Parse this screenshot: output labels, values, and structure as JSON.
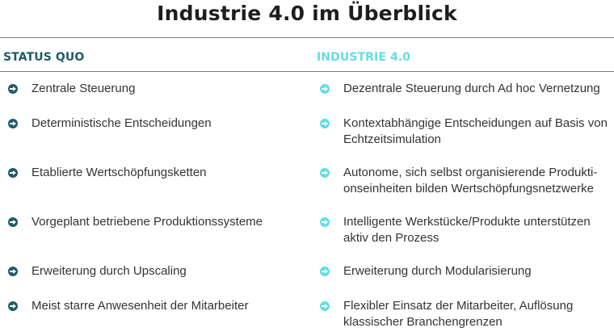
{
  "title": "Industrie 4.0 im Überblick",
  "columns": {
    "left": {
      "heading": "STATUS QUO",
      "items": [
        "Zentrale Steuerung",
        "Deterministische Entscheidungen",
        "Etablierte Wertschöpfungsketten",
        "Vorgeplant betriebene Produktionssysteme",
        "Erweiterung durch Upscaling",
        "Meist starre Anwesenheit der Mitarbeiter"
      ]
    },
    "right": {
      "heading": "INDUSTRIE 4.0",
      "items": [
        "Dezentrale Steuerung durch Ad hoc Vernetzung",
        "Kontextabhängige Entscheidungen auf Basis von Echtzeitsimulation",
        "Autonome, sich selbst organisierende Produkti-onseinheiten bilden Wertschöpfungsnetzwerke",
        "Intelligente Werkstücke/Produkte unterstützen aktiv den Prozess",
        "Erweiterung durch Modularisierung",
        "Flexibler Einsatz der Mitarbeiter, Auflösung klassischer Branchengrenzen"
      ]
    }
  },
  "colors": {
    "status_quo": "#1f5a66",
    "industrie_4_0": "#62dde6"
  },
  "icons": {
    "bullet": "arrow-circle-icon"
  }
}
